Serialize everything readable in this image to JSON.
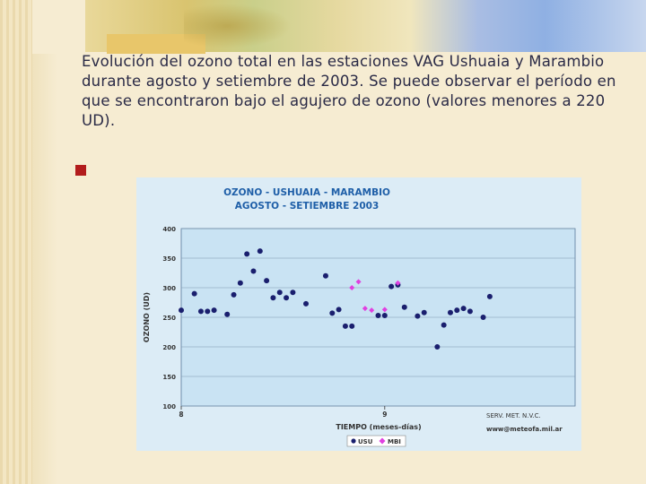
{
  "slide": {
    "body_text": "Evolución del ozono total en las estaciones VAG Ushuaia y Marambio durante agosto y setiembre de 2003. Se puede observar el período en que se encontraron bajo el agujero de ozono (valores menores a 220 UD)."
  },
  "colors": {
    "bullet": "#b21c1c",
    "plot_bg": "#c9e3f3",
    "title_color": "#1f5fa8",
    "usu": "#1a1f6e",
    "mbi": "#e040e0"
  },
  "chart_data": {
    "type": "scatter",
    "title": "OZONO - USHUAIA - MARAMBIO",
    "subtitle": "AGOSTO - SETIEMBRE 2003",
    "xlabel": "TIEMPO (meses-días)",
    "ylabel": "OZONO (UD)",
    "xlim": [
      1,
      61
    ],
    "ylim": [
      100,
      400
    ],
    "x_ticks": [
      {
        "x": 1,
        "label": "8"
      },
      {
        "x": 32,
        "label": "9"
      }
    ],
    "y_ticks": [
      100,
      150,
      200,
      250,
      300,
      350,
      400
    ],
    "grid": true,
    "legend_position": "bottom-center",
    "annotations": [
      "SERV. MET. N.V.C.",
      "www@meteofa.mil.ar"
    ],
    "series": [
      {
        "name": "USU",
        "marker": "circle",
        "x": [
          1,
          3,
          4,
          5,
          6,
          8,
          9,
          10,
          11,
          12,
          13,
          14,
          15,
          16,
          17,
          18,
          20,
          23,
          24,
          25,
          26,
          27,
          31,
          32,
          33,
          34,
          35,
          37,
          38,
          40,
          41,
          42,
          43,
          44,
          45,
          47,
          48
        ],
        "y": [
          262,
          290,
          260,
          260,
          262,
          255,
          288,
          308,
          357,
          328,
          362,
          312,
          283,
          292,
          283,
          292,
          273,
          320,
          257,
          263,
          235,
          235,
          253,
          253,
          302,
          305,
          267,
          252,
          258,
          200,
          237,
          258,
          262,
          265,
          260,
          250,
          285
        ]
      },
      {
        "name": "MBI",
        "marker": "diamond",
        "x": [
          27,
          28,
          29,
          30,
          32,
          34
        ],
        "y": [
          300,
          310,
          265,
          262,
          263,
          308
        ]
      }
    ]
  }
}
